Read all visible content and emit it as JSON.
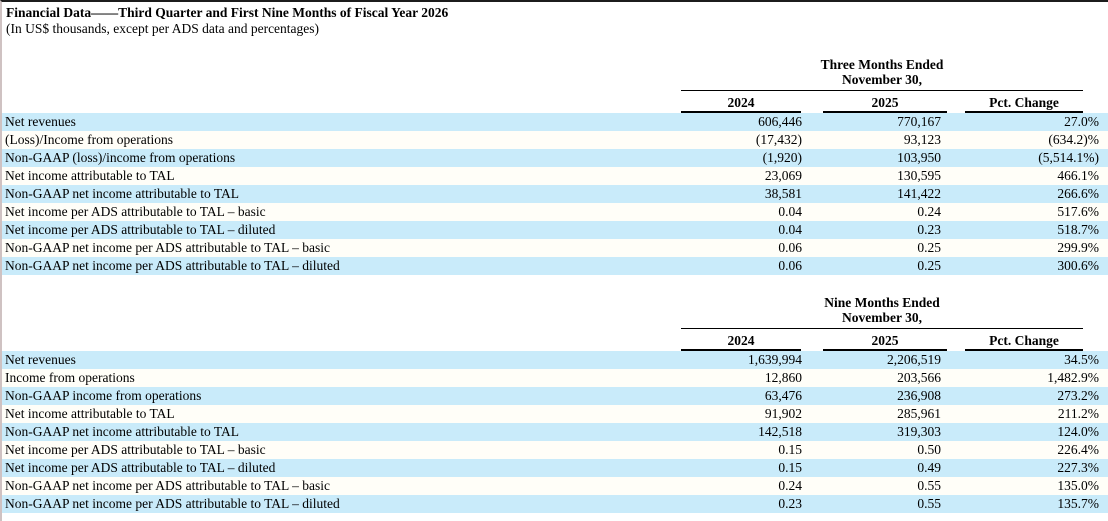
{
  "page": {
    "title": "Financial Data——Third Quarter and First Nine Months of Fiscal Year 2026",
    "subtitle": "(In US$ thousands, except per ADS data and percentages)"
  },
  "colors": {
    "row_highlight": "#c9ebfa",
    "row_alt": "#fffef8",
    "text": "#000000",
    "rule": "#000000"
  },
  "tables": [
    {
      "name": "three-months",
      "period_line1": "Three Months Ended",
      "period_line2": "November 30,",
      "columns": [
        "2024",
        "2025",
        "Pct. Change"
      ],
      "rows": [
        {
          "label": "Net revenues",
          "v2024": "606,446",
          "v2025": "770,167",
          "pct_change": "27.0%"
        },
        {
          "label": "(Loss)/Income from operations",
          "v2024": "(17,432)",
          "v2025": "93,123",
          "pct_change": "(634.2)%"
        },
        {
          "label": "Non-GAAP (loss)/income from operations",
          "v2024": "(1,920)",
          "v2025": "103,950",
          "pct_change": "(5,514.1%)"
        },
        {
          "label": "Net income attributable to TAL",
          "v2024": "23,069",
          "v2025": "130,595",
          "pct_change": "466.1%"
        },
        {
          "label": "Non-GAAP net income attributable to TAL",
          "v2024": "38,581",
          "v2025": "141,422",
          "pct_change": "266.6%"
        },
        {
          "label": "Net income per ADS attributable to TAL – basic",
          "v2024": "0.04",
          "v2025": "0.24",
          "pct_change": "517.6%"
        },
        {
          "label": "Net income per ADS attributable to TAL – diluted",
          "v2024": "0.04",
          "v2025": "0.23",
          "pct_change": "518.7%"
        },
        {
          "label": "Non-GAAP net income per ADS attributable to TAL – basic",
          "v2024": "0.06",
          "v2025": "0.25",
          "pct_change": "299.9%"
        },
        {
          "label": "Non-GAAP net income per ADS attributable to TAL – diluted",
          "v2024": "0.06",
          "v2025": "0.25",
          "pct_change": "300.6%"
        }
      ]
    },
    {
      "name": "nine-months",
      "period_line1": "Nine Months Ended",
      "period_line2": "November 30,",
      "columns": [
        "2024",
        "2025",
        "Pct. Change"
      ],
      "rows": [
        {
          "label": "Net revenues",
          "v2024": "1,639,994",
          "v2025": "2,206,519",
          "pct_change": "34.5%"
        },
        {
          "label": "Income from operations",
          "v2024": "12,860",
          "v2025": "203,566",
          "pct_change": "1,482.9%"
        },
        {
          "label": "Non-GAAP income from operations",
          "v2024": "63,476",
          "v2025": "236,908",
          "pct_change": "273.2%"
        },
        {
          "label": "Net income attributable to TAL",
          "v2024": "91,902",
          "v2025": "285,961",
          "pct_change": "211.2%"
        },
        {
          "label": "Non-GAAP net income attributable to TAL",
          "v2024": "142,518",
          "v2025": "319,303",
          "pct_change": "124.0%"
        },
        {
          "label": "Net income per ADS attributable to TAL – basic",
          "v2024": "0.15",
          "v2025": "0.50",
          "pct_change": "226.4%"
        },
        {
          "label": "Net income per ADS attributable to TAL – diluted",
          "v2024": "0.15",
          "v2025": "0.49",
          "pct_change": "227.3%"
        },
        {
          "label": "Non-GAAP net income per ADS attributable to TAL – basic",
          "v2024": "0.24",
          "v2025": "0.55",
          "pct_change": "135.0%"
        },
        {
          "label": "Non-GAAP net income per ADS attributable to TAL – diluted",
          "v2024": "0.23",
          "v2025": "0.55",
          "pct_change": "135.7%"
        }
      ]
    }
  ]
}
